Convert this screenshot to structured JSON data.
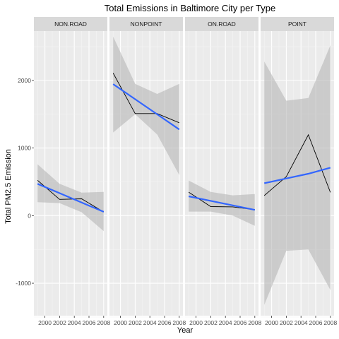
{
  "chart_data": {
    "type": "line",
    "title": "Total Emissions in Baltimore City per Type",
    "xlabel": "Year",
    "ylabel": "Total PM2.5 Emission",
    "x": [
      1999,
      2002,
      2005,
      2008
    ],
    "x_ticks": [
      2000,
      2002,
      2004,
      2006,
      2008
    ],
    "xlim": [
      1998.5,
      2008.5
    ],
    "y_ticks": [
      -1000,
      0,
      1000,
      2000
    ],
    "ylim": [
      -1480,
      2730
    ],
    "grid": true,
    "panels": [
      {
        "name": "NON.ROAD",
        "values": [
          522,
          241,
          249,
          55
        ],
        "fit": [
          470,
          332,
          194,
          57
        ],
        "band_lower": [
          200,
          185,
          50,
          -230
        ],
        "band_upper": [
          760,
          470,
          340,
          350
        ]
      },
      {
        "name": "NONPOINT",
        "values": [
          2108,
          1510,
          1510,
          1374
        ],
        "fit": [
          1945,
          1722,
          1498,
          1275
        ],
        "band_lower": [
          1230,
          1500,
          1200,
          600
        ],
        "band_upper": [
          2650,
          1950,
          1800,
          1950
        ]
      },
      {
        "name": "ON.ROAD",
        "values": [
          347,
          134,
          130,
          88
        ],
        "fit": [
          286,
          219,
          152,
          85
        ],
        "band_lower": [
          60,
          60,
          0,
          -150
        ],
        "band_upper": [
          520,
          350,
          300,
          320
        ]
      },
      {
        "name": "POINT",
        "values": [
          297,
          577,
          1195,
          344
        ],
        "fit": [
          480,
          550,
          620,
          710
        ],
        "band_lower": [
          -1320,
          -520,
          -500,
          -1100
        ],
        "band_upper": [
          2280,
          1700,
          1740,
          2520
        ]
      }
    ],
    "colors": {
      "panel_bg": "#ebebeb",
      "strip_bg": "#d9d9d9",
      "grid_major": "#ffffff",
      "grid_minor": "#f5f5f5",
      "band": "#b0b0b0",
      "line": "#000000",
      "fit": "#3366ff"
    }
  }
}
